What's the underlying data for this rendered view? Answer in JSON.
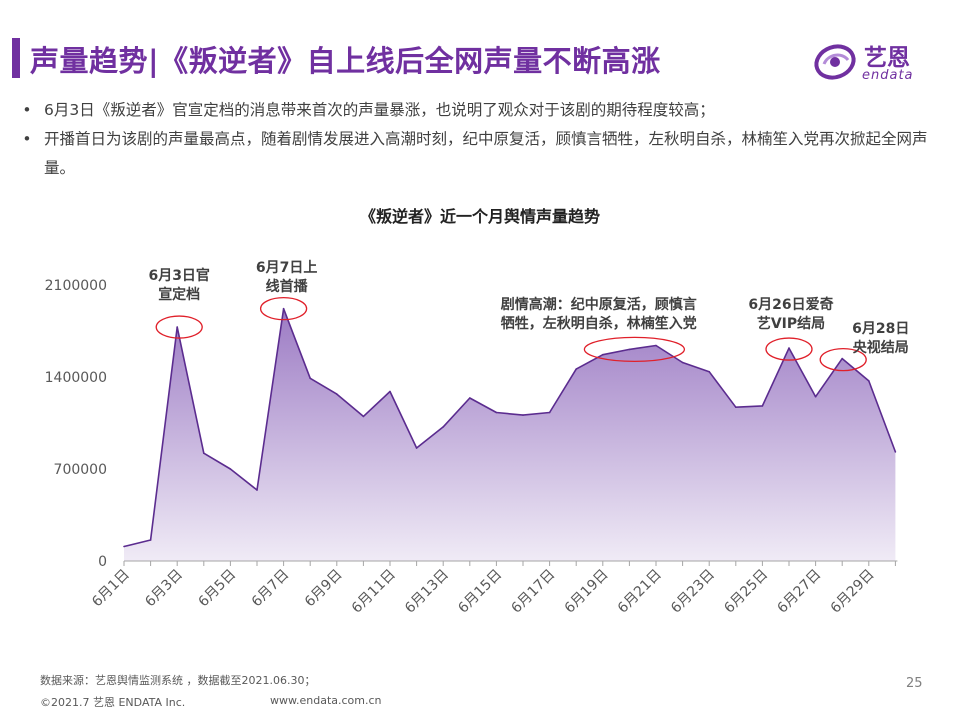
{
  "header": {
    "title": "声量趋势|《叛逆者》自上线后全网声量不断高涨",
    "logo_cn": "艺恩",
    "logo_en": "endata"
  },
  "bullets": [
    "6月3日《叛逆者》官宣定档的消息带来首次的声量暴涨，也说明了观众对于该剧的期待程度较高；",
    "开播首日为该剧的声量最高点，随着剧情发展进入高潮时刻，纪中原复活，顾慎言牺牲，左秋明自杀，林楠笙入党再次掀起全网声量。"
  ],
  "footer": {
    "source": "数据来源：艺恩舆情监测系统 ，数据截至2021.06.30；",
    "copyright": "©2021.7 艺恩 ENDATA Inc.",
    "website": "www.endata.com.cn",
    "page_number": "25"
  },
  "colors": {
    "brand": "#7030A0",
    "area_top": "#9C7BC4",
    "area_bottom": "#F0EBF6",
    "annotation": "#E0202A"
  },
  "chart_data": {
    "type": "area",
    "title": "《叛逆者》近一个月舆情声量趋势",
    "xlabel": "",
    "ylabel": "",
    "ylim": [
      0,
      2100000
    ],
    "y_ticks": [
      0,
      700000,
      1400000,
      2100000
    ],
    "y_tick_labels": [
      "0",
      "700000",
      "1400000",
      "2100000"
    ],
    "x": [
      "6月1日",
      "6月2日",
      "6月3日",
      "6月4日",
      "6月5日",
      "6月6日",
      "6月7日",
      "6月8日",
      "6月9日",
      "6月10日",
      "6月11日",
      "6月12日",
      "6月13日",
      "6月14日",
      "6月15日",
      "6月16日",
      "6月17日",
      "6月18日",
      "6月19日",
      "6月20日",
      "6月21日",
      "6月22日",
      "6月23日",
      "6月24日",
      "6月25日",
      "6月26日",
      "6月27日",
      "6月28日",
      "6月29日",
      "6月30日"
    ],
    "x_tick_labels": [
      "6月1日",
      "6月3日",
      "6月5日",
      "6月7日",
      "6月9日",
      "6月11日",
      "6月13日",
      "6月15日",
      "6月17日",
      "6月19日",
      "6月21日",
      "6月23日",
      "6月25日",
      "6月27日",
      "6月29日"
    ],
    "series": [
      {
        "name": "声量",
        "values": [
          110000,
          160000,
          1780000,
          820000,
          700000,
          540000,
          1920000,
          1390000,
          1270000,
          1100000,
          1290000,
          860000,
          1020000,
          1240000,
          1130000,
          1110000,
          1130000,
          1460000,
          1570000,
          1610000,
          1640000,
          1510000,
          1440000,
          1170000,
          1180000,
          1620000,
          1250000,
          1540000,
          1370000,
          830000
        ]
      }
    ],
    "annotations": [
      {
        "id": "ann-0603",
        "lines": [
          "6月3日官",
          "宣定档"
        ],
        "day_index": 2
      },
      {
        "id": "ann-0607",
        "lines": [
          "6月7日上",
          "线首播"
        ],
        "day_index": 6
      },
      {
        "id": "ann-climax",
        "lines": [
          "剧情高潮：纪中原复活，顾慎言",
          "牺牲，左秋明自杀，林楠笙入党"
        ],
        "day_index": 19
      },
      {
        "id": "ann-0626",
        "lines": [
          "6月26日爱奇",
          "艺VIP结局"
        ],
        "day_index": 25
      },
      {
        "id": "ann-0628",
        "lines": [
          "6月28日",
          "央视结局"
        ],
        "day_index": 27
      }
    ]
  }
}
